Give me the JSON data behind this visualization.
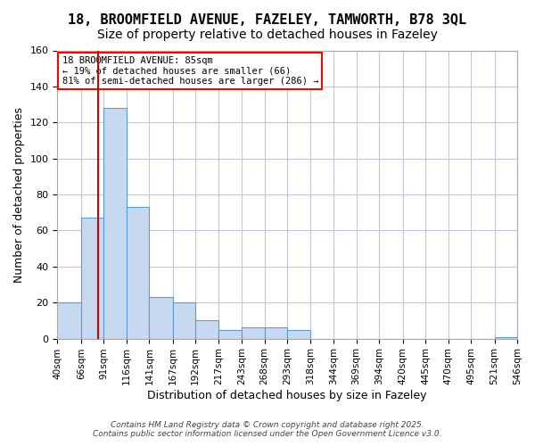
{
  "title_line1": "18, BROOMFIELD AVENUE, FAZELEY, TAMWORTH, B78 3QL",
  "title_line2": "Size of property relative to detached houses in Fazeley",
  "xlabel": "Distribution of detached houses by size in Fazeley",
  "ylabel": "Number of detached properties",
  "annotation_title": "18 BROOMFIELD AVENUE: 85sqm",
  "annotation_line2": "← 19% of detached houses are smaller (66)",
  "annotation_line3": "81% of semi-detached houses are larger (286) →",
  "redline_x": 85,
  "bar_edges": [
    40,
    66,
    91,
    116,
    141,
    167,
    192,
    217,
    243,
    268,
    293,
    318,
    344,
    369,
    394,
    420,
    445,
    470,
    495,
    521,
    546
  ],
  "bar_heights": [
    20,
    67,
    128,
    73,
    23,
    20,
    10,
    5,
    6,
    6,
    5,
    0,
    0,
    0,
    0,
    0,
    0,
    0,
    0,
    1
  ],
  "bar_color": "#c6d9f0",
  "bar_edgecolor": "#5b9bd5",
  "redline_color": "#cc0000",
  "grid_color": "#c0c8d8",
  "background_color": "#ffffff",
  "title_fontsize": 11,
  "subtitle_fontsize": 10,
  "tick_labels": [
    "40sqm",
    "66sqm",
    "91sqm",
    "116sqm",
    "141sqm",
    "167sqm",
    "192sqm",
    "217sqm",
    "243sqm",
    "268sqm",
    "293sqm",
    "318sqm",
    "344sqm",
    "369sqm",
    "394sqm",
    "420sqm",
    "445sqm",
    "470sqm",
    "495sqm",
    "521sqm",
    "546sqm"
  ],
  "ylim": [
    0,
    160
  ],
  "yticks": [
    0,
    20,
    40,
    60,
    80,
    100,
    120,
    140,
    160
  ],
  "footer_line1": "Contains HM Land Registry data © Crown copyright and database right 2025.",
  "footer_line2": "Contains public sector information licensed under the Open Government Licence v3.0."
}
